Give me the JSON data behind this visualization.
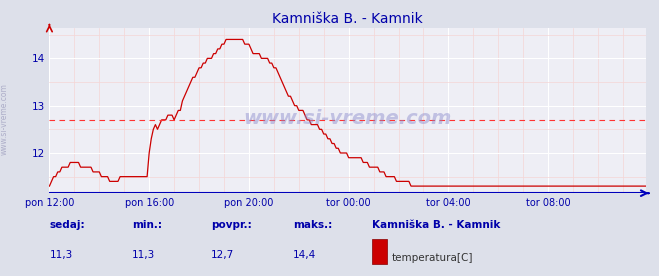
{
  "title": "Kamniška B. - Kamnik",
  "bg_color": "#dde0ea",
  "plot_bg_color": "#eeeef5",
  "line_color": "#cc0000",
  "grid_color_major": "#ffffff",
  "grid_color_minor": "#f5d5d5",
  "axis_color": "#0000bb",
  "text_color": "#0000aa",
  "dashed_line_color": "#ff3333",
  "x_tick_labels": [
    "pon 12:00",
    "pon 16:00",
    "pon 20:00",
    "tor 00:00",
    "tor 04:00",
    "tor 08:00"
  ],
  "x_tick_positions": [
    0,
    48,
    96,
    144,
    192,
    240
  ],
  "xlim_max": 287,
  "ylim": [
    11.15,
    14.65
  ],
  "yticks": [
    12,
    13,
    14
  ],
  "dashed_y": 12.7,
  "legend_label": "temperatura[C]",
  "legend_station": "Kamniška B. - Kamnik",
  "stat_labels": [
    "sedaj:",
    "min.:",
    "povpr.:",
    "maks.:"
  ],
  "stat_values": [
    "11,3",
    "11,3",
    "12,7",
    "14,4"
  ],
  "watermark": "www.si-vreme.com",
  "ylabel_rotated": "www.si-vreme.com",
  "data_y": [
    11.3,
    11.4,
    11.5,
    11.5,
    11.6,
    11.6,
    11.7,
    11.7,
    11.7,
    11.7,
    11.8,
    11.8,
    11.8,
    11.8,
    11.8,
    11.7,
    11.7,
    11.7,
    11.7,
    11.7,
    11.7,
    11.6,
    11.6,
    11.6,
    11.6,
    11.5,
    11.5,
    11.5,
    11.5,
    11.4,
    11.4,
    11.4,
    11.4,
    11.4,
    11.5,
    11.5,
    11.5,
    11.5,
    11.5,
    11.5,
    11.5,
    11.5,
    11.5,
    11.5,
    11.5,
    11.5,
    11.5,
    11.5,
    12.0,
    12.3,
    12.5,
    12.6,
    12.5,
    12.6,
    12.7,
    12.7,
    12.7,
    12.8,
    12.8,
    12.8,
    12.7,
    12.8,
    12.9,
    12.9,
    13.1,
    13.2,
    13.3,
    13.4,
    13.5,
    13.6,
    13.6,
    13.7,
    13.8,
    13.8,
    13.9,
    13.9,
    14.0,
    14.0,
    14.0,
    14.1,
    14.1,
    14.2,
    14.2,
    14.3,
    14.3,
    14.4,
    14.4,
    14.4,
    14.4,
    14.4,
    14.4,
    14.4,
    14.4,
    14.4,
    14.3,
    14.3,
    14.3,
    14.2,
    14.1,
    14.1,
    14.1,
    14.1,
    14.0,
    14.0,
    14.0,
    14.0,
    13.9,
    13.9,
    13.8,
    13.8,
    13.7,
    13.6,
    13.5,
    13.4,
    13.3,
    13.2,
    13.2,
    13.1,
    13.0,
    13.0,
    12.9,
    12.9,
    12.9,
    12.8,
    12.7,
    12.7,
    12.6,
    12.6,
    12.6,
    12.6,
    12.5,
    12.5,
    12.4,
    12.4,
    12.3,
    12.3,
    12.2,
    12.2,
    12.1,
    12.1,
    12.0,
    12.0,
    12.0,
    12.0,
    11.9,
    11.9,
    11.9,
    11.9,
    11.9,
    11.9,
    11.9,
    11.8,
    11.8,
    11.8,
    11.7,
    11.7,
    11.7,
    11.7,
    11.7,
    11.6,
    11.6,
    11.6,
    11.5,
    11.5,
    11.5,
    11.5,
    11.5,
    11.4,
    11.4,
    11.4,
    11.4,
    11.4,
    11.4,
    11.4,
    11.3,
    11.3,
    11.3,
    11.3,
    11.3,
    11.3,
    11.3,
    11.3,
    11.3,
    11.3,
    11.3,
    11.3,
    11.3,
    11.3,
    11.3,
    11.3,
    11.3,
    11.3,
    11.3,
    11.3,
    11.3,
    11.3,
    11.3,
    11.3,
    11.3,
    11.3,
    11.3,
    11.3,
    11.3,
    11.3,
    11.3,
    11.3,
    11.3,
    11.3,
    11.3,
    11.3,
    11.3,
    11.3,
    11.3,
    11.3,
    11.3,
    11.3,
    11.3,
    11.3,
    11.3,
    11.3,
    11.3,
    11.3,
    11.3,
    11.3,
    11.3,
    11.3,
    11.3,
    11.3,
    11.3,
    11.3,
    11.3,
    11.3,
    11.3,
    11.3,
    11.3,
    11.3,
    11.3,
    11.3,
    11.3,
    11.3,
    11.3,
    11.3,
    11.3,
    11.3,
    11.3,
    11.3,
    11.3,
    11.3,
    11.3,
    11.3,
    11.3,
    11.3,
    11.3,
    11.3,
    11.3,
    11.3,
    11.3,
    11.3,
    11.3,
    11.3,
    11.3,
    11.3,
    11.3,
    11.3,
    11.3,
    11.3,
    11.3,
    11.3,
    11.3,
    11.3,
    11.3,
    11.3,
    11.3,
    11.3,
    11.3,
    11.3,
    11.3,
    11.3,
    11.3,
    11.3,
    11.3,
    11.3,
    11.3,
    11.3,
    11.3,
    11.3,
    11.3,
    11.3
  ]
}
